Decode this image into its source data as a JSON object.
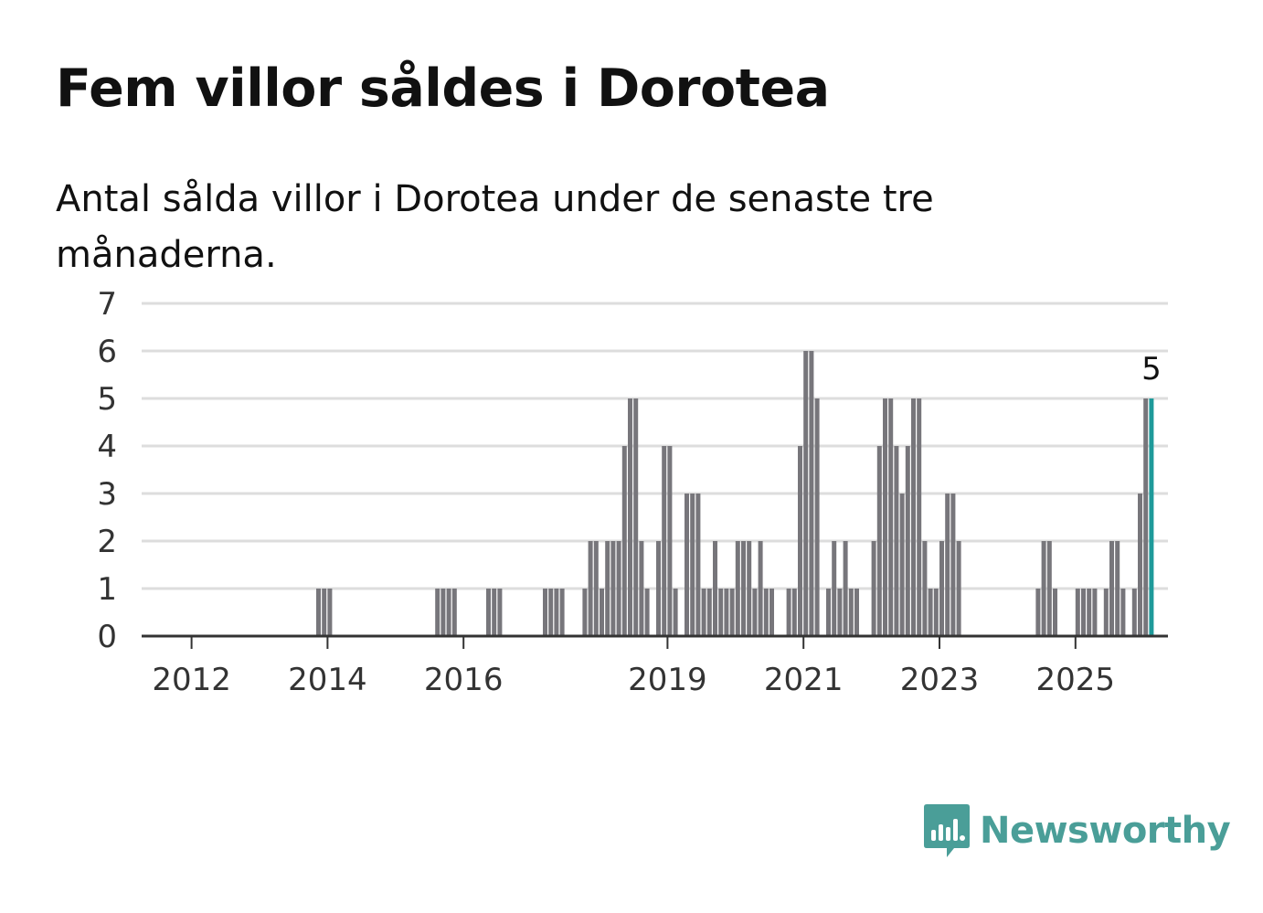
{
  "title": "Fem villor såldes i Dorotea",
  "subtitle": "Antal sålda villor i Dorotea under de senaste tre månaderna.",
  "brand": {
    "name": "Newsworthy",
    "icon": "newsworthy-logo-icon",
    "color": "#4a9e98"
  },
  "chart_data": {
    "type": "bar",
    "title": "Fem villor såldes i Dorotea",
    "subtitle": "Antal sålda villor i Dorotea under de senaste tre månaderna.",
    "xlabel": "",
    "ylabel": "",
    "ylim": [
      0,
      7
    ],
    "y_ticks": [
      "0",
      "1",
      "2",
      "3",
      "4",
      "5",
      "6",
      "7"
    ],
    "x_ticks": [
      "2012",
      "2014",
      "2016",
      "2019",
      "2021",
      "2023",
      "2025"
    ],
    "grid": true,
    "bar_color": "#77767b",
    "highlight_color": "#1e9a9a",
    "highlight_label": "5",
    "x_start": "2011-05",
    "x_end": "2025-08",
    "values": [
      0,
      0,
      0,
      0,
      0,
      0,
      0,
      0,
      0,
      0,
      0,
      0,
      0,
      0,
      0,
      0,
      0,
      0,
      0,
      0,
      0,
      0,
      0,
      0,
      0,
      0,
      0,
      0,
      0,
      0,
      1,
      1,
      1,
      0,
      0,
      0,
      0,
      0,
      0,
      0,
      0,
      0,
      0,
      0,
      0,
      0,
      0,
      0,
      0,
      0,
      0,
      1,
      1,
      1,
      1,
      0,
      0,
      0,
      0,
      0,
      1,
      1,
      1,
      0,
      0,
      0,
      0,
      0,
      0,
      0,
      1,
      1,
      1,
      1,
      0,
      0,
      0,
      1,
      2,
      2,
      1,
      2,
      2,
      2,
      4,
      5,
      5,
      2,
      1,
      0,
      2,
      4,
      4,
      1,
      0,
      3,
      3,
      3,
      1,
      1,
      2,
      1,
      1,
      1,
      2,
      2,
      2,
      1,
      2,
      1,
      1,
      0,
      0,
      1,
      1,
      4,
      6,
      6,
      5,
      0,
      1,
      2,
      1,
      2,
      1,
      1,
      0,
      0,
      2,
      4,
      5,
      5,
      4,
      3,
      4,
      5,
      5,
      2,
      1,
      1,
      2,
      3,
      3,
      2,
      0,
      0,
      0,
      0,
      0,
      0,
      0,
      0,
      0,
      0,
      0,
      0,
      0,
      1,
      2,
      2,
      1,
      0,
      0,
      0,
      1,
      1,
      1,
      1,
      0,
      1,
      2,
      2,
      1,
      0,
      1,
      3,
      5,
      5
    ]
  }
}
